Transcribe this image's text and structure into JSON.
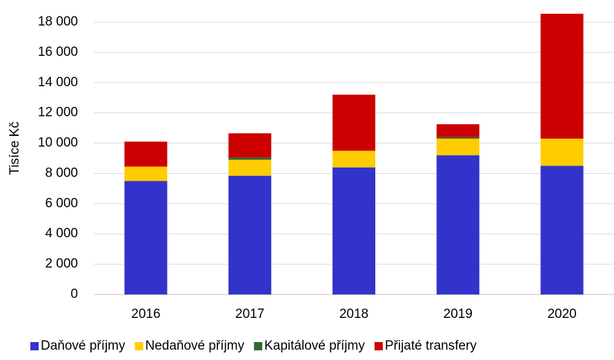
{
  "chart_data": {
    "type": "stacked_bar",
    "y_label": "Tisíce Kč",
    "categories": [
      "2016",
      "2017",
      "2018",
      "2019",
      "2020"
    ],
    "series": [
      {
        "name": "Daňové příjmy",
        "color": "#3333cc",
        "values": [
          7500,
          7850,
          8400,
          9200,
          8500
        ]
      },
      {
        "name": "Nedaňové příjmy",
        "color": "#ffcc00",
        "values": [
          950,
          1050,
          1100,
          1100,
          1800
        ]
      },
      {
        "name": "Kapitálové příjmy",
        "color": "#336633",
        "values": [
          0,
          150,
          0,
          100,
          0
        ]
      },
      {
        "name": "Přijaté transfery",
        "color": "#cc0000",
        "values": [
          1650,
          1600,
          3700,
          850,
          8250
        ]
      }
    ],
    "ylim": [
      0,
      18000
    ],
    "yticks": [
      0,
      {
        "value": 2000,
        "label": "2 000"
      },
      {
        "value": 4000,
        "label": "4 000"
      },
      {
        "value": 6000,
        "label": "6 000"
      },
      {
        "value": 8000,
        "label": "8 000"
      },
      {
        "value": 10000,
        "label": "10 000"
      },
      {
        "value": 12000,
        "label": "12 000"
      },
      {
        "value": 14000,
        "label": "14 000"
      },
      {
        "value": 16000,
        "label": "16 000"
      },
      {
        "value": 18000,
        "label": "18 000"
      }
    ],
    "grid": true,
    "legend": "bottom"
  }
}
